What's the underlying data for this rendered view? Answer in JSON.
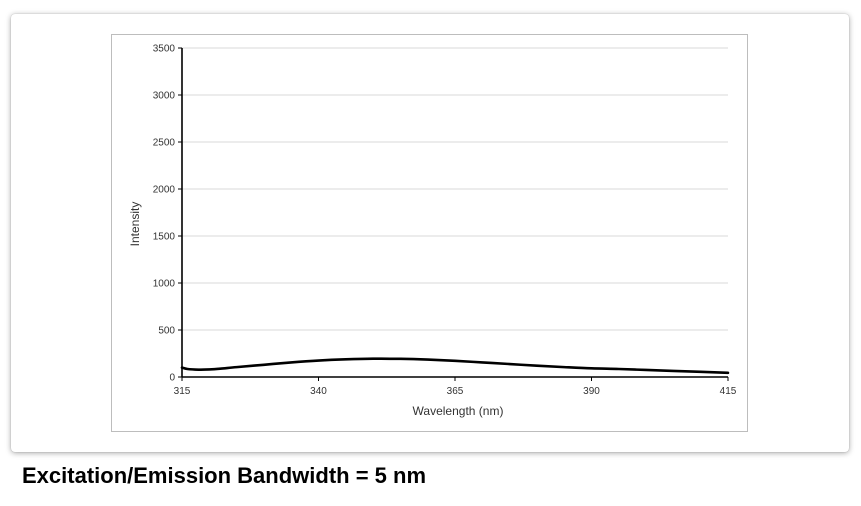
{
  "colors": {
    "line": "#000000",
    "grid": "#d9d9d9",
    "axis": "#000000",
    "tick_text": "#333333"
  },
  "caption": "Excitation/Emission Bandwidth = 5 nm",
  "chart_data": {
    "type": "line",
    "title": "",
    "xlabel": "Wavelength (nm)",
    "ylabel": "Intensity",
    "xlim": [
      315,
      415
    ],
    "ylim": [
      0,
      3500
    ],
    "xticks": [
      315,
      340,
      365,
      390,
      415
    ],
    "yticks": [
      0,
      500,
      1000,
      1500,
      2000,
      2500,
      3000,
      3500
    ],
    "grid": "horizontal",
    "legend": "none",
    "series": [
      {
        "x": [
          315,
          316,
          318,
          320,
          322,
          325,
          330,
          335,
          340,
          345,
          350,
          355,
          360,
          365,
          370,
          375,
          380,
          385,
          390,
          395,
          400,
          405,
          410,
          415
        ],
        "y": [
          100,
          85,
          78,
          80,
          88,
          105,
          130,
          155,
          175,
          188,
          195,
          193,
          185,
          172,
          155,
          138,
          120,
          105,
          92,
          85,
          75,
          65,
          55,
          45
        ]
      }
    ]
  }
}
